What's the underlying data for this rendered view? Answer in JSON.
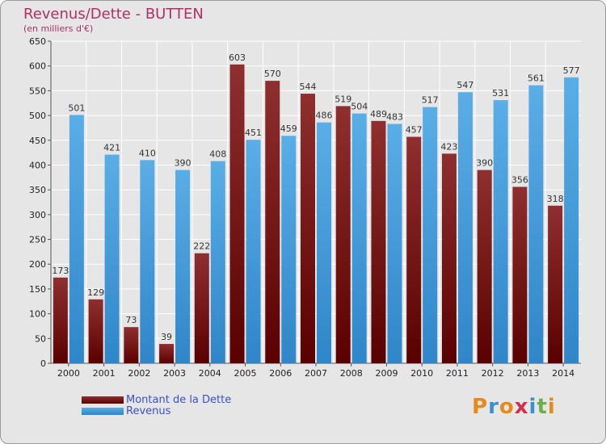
{
  "chart_data": {
    "type": "bar",
    "title": "Revenus/Dette - BUTTEN",
    "subtitle": "(en milliers d'€)",
    "categories": [
      "2000",
      "2001",
      "2002",
      "2003",
      "2004",
      "2005",
      "2006",
      "2007",
      "2008",
      "2009",
      "2010",
      "2011",
      "2012",
      "2013",
      "2014"
    ],
    "series": [
      {
        "name": "Montant de la Dette",
        "color": "#7a1e1e",
        "values": [
          173,
          129,
          73,
          39,
          222,
          603,
          570,
          544,
          519,
          489,
          457,
          423,
          390,
          356,
          318
        ]
      },
      {
        "name": "Revenus",
        "color": "#4fa3e0",
        "values": [
          501,
          421,
          410,
          390,
          408,
          451,
          459,
          486,
          504,
          483,
          517,
          547,
          531,
          561,
          577
        ]
      }
    ],
    "ylim": [
      0,
      650
    ],
    "yticks": [
      0,
      50,
      100,
      150,
      200,
      250,
      300,
      350,
      400,
      450,
      500,
      550,
      600,
      650
    ],
    "grid": true,
    "legend": "bottom-left"
  },
  "logo": {
    "letters": [
      "P",
      "r",
      "o",
      "x",
      "i",
      "t",
      "i"
    ],
    "colors": [
      "#e88a1a",
      "#3a8fd0",
      "#e88a1a",
      "#d0304a",
      "#3a8fd0",
      "#6ab04c",
      "#e88a1a"
    ]
  }
}
